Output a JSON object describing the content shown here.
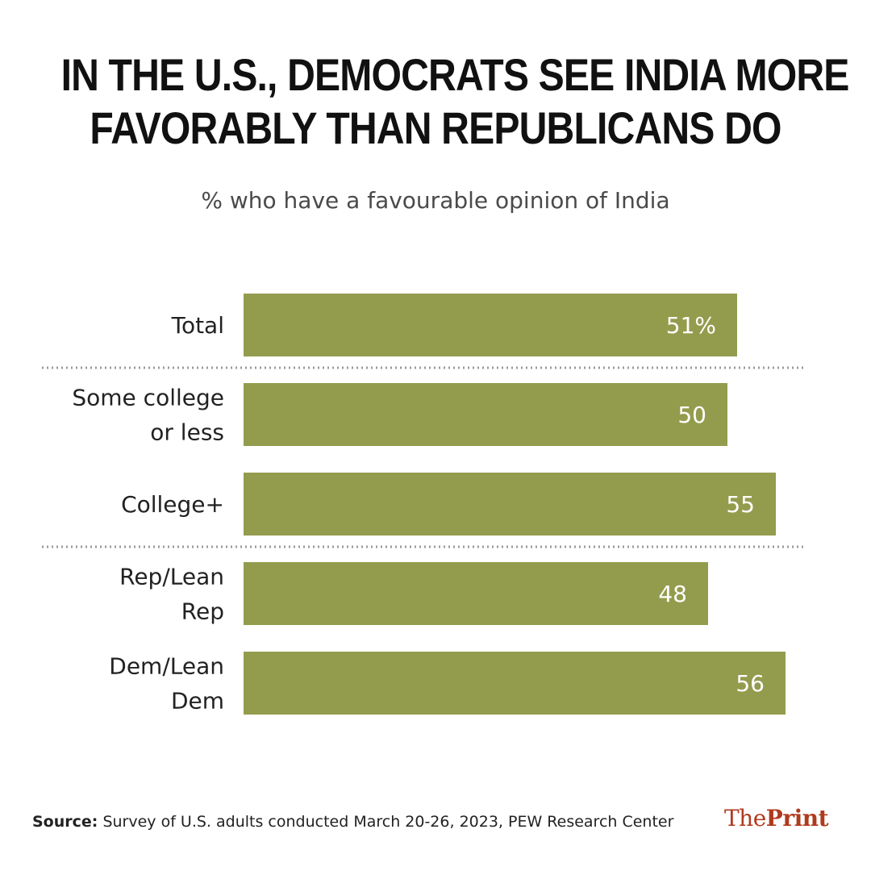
{
  "chart_data": {
    "type": "bar",
    "orientation": "horizontal",
    "title_lines": [
      "In the U.S., Democrats see India more",
      "favorably than Republicans do"
    ],
    "subtitle": "% who have a favourable opinion of India",
    "categories": [
      [
        "Total"
      ],
      [
        "Some college",
        "or less"
      ],
      [
        "College+"
      ],
      [
        "Rep/Lean",
        "Rep"
      ],
      [
        "Dem/Lean",
        "Dem"
      ]
    ],
    "values": [
      51,
      50,
      55,
      48,
      56
    ],
    "value_labels": [
      "51%",
      "50",
      "55",
      "48",
      "56"
    ],
    "groups": [
      [
        0
      ],
      [
        1,
        2
      ],
      [
        3,
        4
      ]
    ],
    "xlim": [
      0,
      58
    ],
    "bar_color": "#939c4d",
    "separator_style": "dotted",
    "grid": false,
    "legend": "none"
  },
  "source": {
    "label": "Source:",
    "text": "Survey of U.S. adults conducted March 20-26, 2023, PEW Research Center"
  },
  "logo": {
    "part1": "The",
    "part2": "Print",
    "color": "#b03a1e"
  }
}
